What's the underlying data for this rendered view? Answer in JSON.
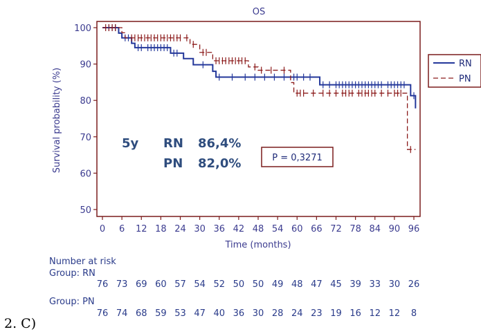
{
  "chart_data": {
    "type": "line",
    "subtype": "kaplan-meier",
    "title": "OS",
    "xlabel": "Time (months)",
    "ylabel": "Survival probability (%)",
    "xlim": [
      0,
      97
    ],
    "ylim": [
      48,
      101
    ],
    "x_ticks": [
      0,
      6,
      12,
      18,
      24,
      30,
      36,
      42,
      48,
      54,
      60,
      66,
      72,
      78,
      84,
      90,
      96
    ],
    "y_ticks": [
      50,
      60,
      70,
      80,
      90,
      100
    ],
    "legend_position": "right",
    "colors": {
      "RN": "#23379a",
      "PN": "#8b1a1a",
      "frame": "#7a1c1c"
    },
    "series": [
      {
        "name": "RN",
        "style": "solid",
        "steps": [
          [
            0,
            100
          ],
          [
            5,
            98.5
          ],
          [
            6,
            97.2
          ],
          [
            9,
            95.7
          ],
          [
            10,
            94.5
          ],
          [
            21,
            93
          ],
          [
            25,
            91.5
          ],
          [
            28,
            89.8
          ],
          [
            34,
            88
          ],
          [
            35,
            86.4
          ],
          [
            66,
            86.4
          ],
          [
            67,
            84.3
          ],
          [
            94,
            84.3
          ],
          [
            95,
            81.3
          ],
          [
            96.5,
            77.8
          ]
        ],
        "censored": [
          2,
          3,
          4,
          7,
          8,
          11,
          12,
          14,
          15,
          16,
          17,
          18,
          19,
          20,
          22,
          23,
          31,
          36,
          40,
          44,
          47,
          50,
          53,
          56,
          59,
          60,
          62,
          64,
          68,
          70,
          72,
          73,
          74,
          75,
          76,
          77,
          78,
          79,
          80,
          81,
          82,
          83,
          84,
          85,
          86,
          88,
          89,
          90,
          91,
          92,
          93,
          96
        ]
      },
      {
        "name": "PN",
        "style": "dashed",
        "steps": [
          [
            0,
            100
          ],
          [
            6,
            98.6
          ],
          [
            7,
            97.2
          ],
          [
            27,
            95.4
          ],
          [
            30,
            93.2
          ],
          [
            34,
            90.9
          ],
          [
            45,
            89.2
          ],
          [
            48,
            88.3
          ],
          [
            58,
            84.9
          ],
          [
            59,
            82
          ],
          [
            93,
            82
          ],
          [
            94,
            66.5
          ],
          [
            96.5,
            66.5
          ]
        ],
        "censored": [
          1,
          2,
          3,
          4,
          9,
          10,
          11,
          12,
          13,
          14,
          15,
          16,
          17,
          18,
          19,
          20,
          21,
          22,
          23,
          24,
          26,
          28,
          31,
          32,
          35,
          36,
          37,
          38,
          39,
          40,
          41,
          42,
          43,
          44,
          47,
          49,
          52,
          56,
          60,
          61,
          62,
          65,
          68,
          70,
          72,
          74,
          75,
          76,
          77,
          79,
          80,
          81,
          82,
          83,
          84,
          86,
          88,
          90,
          91,
          92,
          95
        ]
      }
    ],
    "annotation_summary": {
      "label": "5y",
      "rows": [
        {
          "group": "RN",
          "value": "86,4%"
        },
        {
          "group": "PN",
          "value": "82,0%"
        }
      ]
    },
    "p_value": "P = 0,3271",
    "risk_table": {
      "title": "Number at risk",
      "groups": [
        {
          "label": "Group: RN",
          "values": [
            "76",
            "73",
            "69",
            "60",
            "57",
            "54",
            "52",
            "50",
            "50",
            "49",
            "48",
            "47",
            "45",
            "39",
            "33",
            "30",
            "26"
          ]
        },
        {
          "label": "Group: PN",
          "values": [
            "76",
            "74",
            "68",
            "59",
            "53",
            "47",
            "40",
            "36",
            "30",
            "28",
            "24",
            "23",
            "19",
            "16",
            "12",
            "12",
            "8"
          ]
        }
      ]
    }
  },
  "caption": "2. C)"
}
